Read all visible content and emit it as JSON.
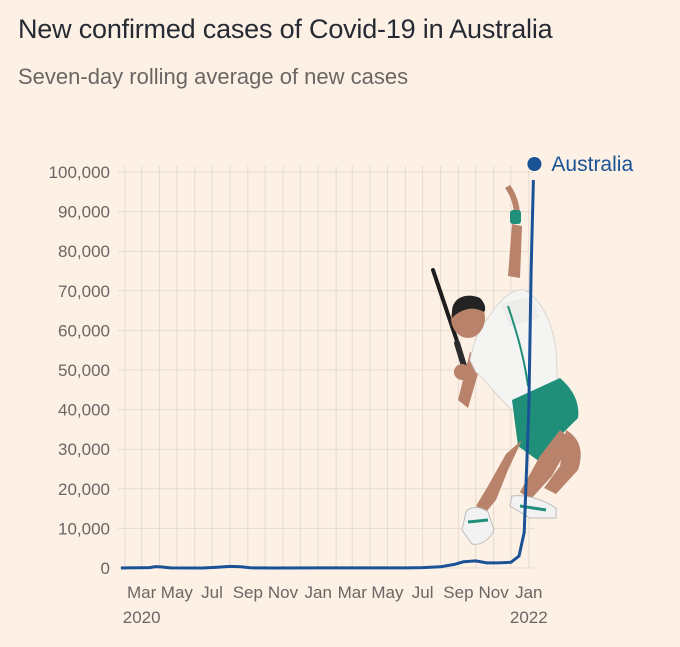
{
  "header": {
    "title": "New confirmed cases of Covid-19 in Australia",
    "subtitle": "Seven-day rolling average of new cases"
  },
  "colors": {
    "background": "#fdf1e6",
    "series": "#1a5296",
    "grid": "#e6dbd0",
    "text": "#262a33",
    "muted": "#6a6663",
    "player_shirt": "#f4f4f2",
    "player_shorts": "#1f8f7a",
    "player_skin": "#b9826a"
  },
  "illustration": {
    "type": "tennis-player-serving",
    "description_icon": "tennis-player-icon"
  },
  "chart_data": {
    "type": "line",
    "title": "",
    "xlabel": "",
    "ylabel": "",
    "ylim": [
      0,
      100000
    ],
    "yticks": [
      0,
      10000,
      20000,
      30000,
      40000,
      50000,
      60000,
      70000,
      80000,
      90000,
      100000
    ],
    "ytick_labels": [
      "0",
      "10,000",
      "20,000",
      "30,000",
      "40,000",
      "50,000",
      "60,000",
      "70,000",
      "80,000",
      "90,000",
      "100,000"
    ],
    "x_tick_labels": [
      "Mar",
      "May",
      "Jul",
      "Sep",
      "Nov",
      "Jan",
      "Mar",
      "May",
      "Jul",
      "Sep",
      "Nov",
      "Jan"
    ],
    "x_tick_dates": [
      "2020-03-01",
      "2020-05-01",
      "2020-07-01",
      "2020-09-01",
      "2020-11-01",
      "2021-01-01",
      "2021-03-01",
      "2021-05-01",
      "2021-07-01",
      "2021-09-01",
      "2021-11-01",
      "2022-01-01"
    ],
    "x_year_labels": [
      {
        "label": "2020",
        "date": "2020-03-01"
      },
      {
        "label": "2022",
        "date": "2022-01-01"
      }
    ],
    "grid": true,
    "legend": "top-right",
    "series": [
      {
        "name": "Australia",
        "x": [
          "2020-01-25",
          "2020-03-15",
          "2020-03-25",
          "2020-04-05",
          "2020-04-20",
          "2020-06-15",
          "2020-07-10",
          "2020-08-01",
          "2020-08-20",
          "2020-09-05",
          "2020-10-15",
          "2021-01-01",
          "2021-06-01",
          "2021-07-01",
          "2021-08-01",
          "2021-08-25",
          "2021-09-10",
          "2021-10-01",
          "2021-10-20",
          "2021-11-10",
          "2021-12-01",
          "2021-12-15",
          "2021-12-24",
          "2022-01-01",
          "2022-01-05",
          "2022-01-09"
        ],
        "values": [
          0,
          100,
          350,
          250,
          20,
          10,
          200,
          400,
          300,
          50,
          10,
          20,
          20,
          100,
          300,
          900,
          1600,
          1800,
          1300,
          1300,
          1450,
          3000,
          9000,
          40000,
          75000,
          98000
        ]
      }
    ]
  }
}
